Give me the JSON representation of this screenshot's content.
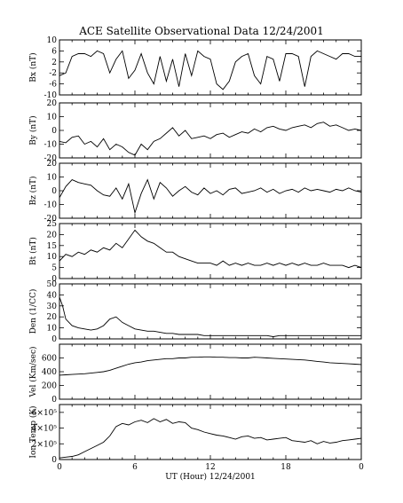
{
  "chart_data": {
    "title": "ACE Satellite Observational Data   12/24/2001",
    "type": "line",
    "x_axis": {
      "label": "UT (Hour)  12/24/2001",
      "range_hours": [
        0,
        24
      ],
      "ticks": [
        {
          "hour": 0,
          "label": "0"
        },
        {
          "hour": 6,
          "label": "6"
        },
        {
          "hour": 12,
          "label": "12"
        },
        {
          "hour": 18,
          "label": "18"
        },
        {
          "hour": 24,
          "label": "0"
        }
      ]
    },
    "panels": [
      {
        "ylabel": "Bx (nT)",
        "ylim": [
          -10,
          10
        ],
        "ticks": [
          "-10",
          "-6",
          "-2",
          "2",
          "6",
          "10"
        ],
        "tick_values": [
          -10,
          -6,
          -2,
          2,
          6,
          10
        ],
        "color": "#000000",
        "x": [
          0,
          0.5,
          1,
          1.5,
          2,
          2.5,
          3,
          3.5,
          4,
          4.5,
          5,
          5.5,
          6,
          6.5,
          7,
          7.5,
          8,
          8.5,
          9,
          9.5,
          10,
          10.5,
          11,
          11.5,
          12,
          12.5,
          13,
          13.5,
          14,
          14.5,
          15,
          15.5,
          16,
          16.5,
          17,
          17.5,
          18,
          18.5,
          19,
          19.5,
          20,
          20.5,
          21,
          21.5,
          22,
          22.5,
          23,
          23.5,
          24
        ],
        "values": [
          -3,
          -2,
          4,
          5,
          5,
          4,
          6,
          5,
          -2,
          3,
          6,
          -4,
          -1,
          5,
          -2,
          -6,
          4,
          -5,
          3,
          -7,
          5,
          -3,
          6,
          4,
          3,
          -6,
          -8,
          -5,
          2,
          4,
          5,
          -3,
          -6,
          4,
          3,
          -5,
          5,
          5,
          4,
          -7,
          4,
          6,
          5,
          4,
          3,
          5,
          5,
          4,
          4
        ]
      },
      {
        "ylabel": "By (nT)",
        "ylim": [
          -20,
          20
        ],
        "ticks": [
          "-20",
          "-10",
          "0",
          "10",
          "20"
        ],
        "tick_values": [
          -20,
          -10,
          0,
          10,
          20
        ],
        "color": "#000000",
        "x": [
          0,
          0.5,
          1,
          1.5,
          2,
          2.5,
          3,
          3.5,
          4,
          4.5,
          5,
          5.5,
          6,
          6.5,
          7,
          7.5,
          8,
          8.5,
          9,
          9.5,
          10,
          10.5,
          11,
          11.5,
          12,
          12.5,
          13,
          13.5,
          14,
          14.5,
          15,
          15.5,
          16,
          16.5,
          17,
          17.5,
          18,
          18.5,
          19,
          19.5,
          20,
          20.5,
          21,
          21.5,
          22,
          22.5,
          23,
          23.5,
          24
        ],
        "values": [
          -8,
          -9,
          -5,
          -4,
          -10,
          -8,
          -12,
          -6,
          -14,
          -10,
          -12,
          -16,
          -18,
          -10,
          -14,
          -8,
          -6,
          -2,
          2,
          -4,
          0,
          -6,
          -5,
          -4,
          -6,
          -3,
          -2,
          -5,
          -3,
          -1,
          -2,
          1,
          -1,
          2,
          3,
          1,
          0,
          2,
          3,
          4,
          2,
          5,
          6,
          3,
          4,
          2,
          0,
          1,
          0
        ]
      },
      {
        "ylabel": "Bz (nT)",
        "ylim": [
          -20,
          20
        ],
        "ticks": [
          "-20",
          "-10",
          "0",
          "10",
          "20"
        ],
        "tick_values": [
          -20,
          -10,
          0,
          10,
          20
        ],
        "color": "#000000",
        "x": [
          0,
          0.5,
          1,
          1.5,
          2,
          2.5,
          3,
          3.5,
          4,
          4.5,
          5,
          5.5,
          6,
          6.5,
          7,
          7.5,
          8,
          8.5,
          9,
          9.5,
          10,
          10.5,
          11,
          11.5,
          12,
          12.5,
          13,
          13.5,
          14,
          14.5,
          15,
          15.5,
          16,
          16.5,
          17,
          17.5,
          18,
          18.5,
          19,
          19.5,
          20,
          20.5,
          21,
          21.5,
          22,
          22.5,
          23,
          23.5,
          24
        ],
        "values": [
          -5,
          3,
          8,
          6,
          5,
          4,
          0,
          -3,
          -4,
          2,
          -6,
          5,
          -16,
          -2,
          8,
          -6,
          6,
          2,
          -4,
          0,
          3,
          -1,
          -3,
          2,
          -2,
          0,
          -3,
          1,
          2,
          -2,
          -1,
          0,
          2,
          -1,
          1,
          -2,
          0,
          1,
          -1,
          2,
          0,
          1,
          0,
          -1,
          1,
          0,
          2,
          0,
          -1
        ]
      },
      {
        "ylabel": "Bt (nT)",
        "ylim": [
          0,
          25
        ],
        "ticks": [
          "0",
          "5",
          "10",
          "15",
          "20",
          "25"
        ],
        "tick_values": [
          0,
          5,
          10,
          15,
          20,
          25
        ],
        "color": "#000000",
        "x": [
          0,
          0.5,
          1,
          1.5,
          2,
          2.5,
          3,
          3.5,
          4,
          4.5,
          5,
          5.5,
          6,
          6.5,
          7,
          7.5,
          8,
          8.5,
          9,
          9.5,
          10,
          10.5,
          11,
          11.5,
          12,
          12.5,
          13,
          13.5,
          14,
          14.5,
          15,
          15.5,
          16,
          16.5,
          17,
          17.5,
          18,
          18.5,
          19,
          19.5,
          20,
          20.5,
          21,
          21.5,
          22,
          22.5,
          23,
          23.5,
          24
        ],
        "values": [
          8,
          11,
          10,
          12,
          11,
          13,
          12,
          14,
          13,
          16,
          14,
          18,
          22,
          19,
          17,
          16,
          14,
          12,
          12,
          10,
          9,
          8,
          7,
          7,
          7,
          6,
          8,
          6,
          7,
          6,
          7,
          6,
          6,
          7,
          6,
          7,
          6,
          7,
          6,
          7,
          6,
          6,
          7,
          6,
          6,
          6,
          5,
          6,
          5
        ]
      },
      {
        "ylabel": "Den (1/CC)",
        "ylim": [
          0,
          50
        ],
        "ticks": [
          "0",
          "10",
          "20",
          "30",
          "40",
          "50"
        ],
        "tick_values": [
          0,
          10,
          20,
          30,
          40,
          50
        ],
        "color": "#000000",
        "x": [
          0,
          0.25,
          0.5,
          1,
          1.5,
          2,
          2.5,
          3,
          3.5,
          4,
          4.5,
          5,
          5.5,
          6,
          6.5,
          7,
          7.5,
          8,
          8.5,
          9,
          9.5,
          10,
          10.5,
          11,
          11.5,
          12,
          12.5,
          13,
          13.5,
          14,
          14.5,
          15,
          15.5,
          16,
          16.5,
          17,
          17.5,
          18,
          18.5,
          19,
          19.5,
          20,
          20.5,
          21,
          21.5,
          22,
          22.5,
          23,
          23.5,
          24
        ],
        "values": [
          38,
          30,
          18,
          12,
          10,
          9,
          8,
          9,
          12,
          18,
          20,
          15,
          12,
          9,
          8,
          7,
          7,
          6,
          5,
          5,
          4,
          4,
          4,
          4,
          3,
          3,
          3,
          3,
          3,
          3,
          3,
          3,
          3,
          3,
          3,
          2,
          3,
          3,
          3,
          3,
          3,
          3,
          3,
          3,
          3,
          3,
          3,
          3,
          3,
          3
        ]
      },
      {
        "ylabel": "Vel (Km/sec)",
        "ylim": [
          0,
          800
        ],
        "ticks": [
          "0",
          "200",
          "400",
          "600"
        ],
        "tick_values": [
          0,
          200,
          400,
          600
        ],
        "color": "#000000",
        "x": [
          0,
          0.5,
          1,
          1.5,
          2,
          2.5,
          3,
          3.5,
          4,
          4.5,
          5,
          5.5,
          6,
          6.5,
          7,
          7.5,
          8,
          8.5,
          9,
          9.5,
          10,
          10.5,
          11,
          11.5,
          12,
          12.5,
          13,
          13.5,
          14,
          14.5,
          15,
          15.5,
          16,
          16.5,
          17,
          17.5,
          18,
          18.5,
          19,
          19.5,
          20,
          20.5,
          21,
          21.5,
          22,
          22.5,
          23,
          23.5,
          24
        ],
        "values": [
          350,
          355,
          360,
          365,
          370,
          380,
          390,
          400,
          420,
          450,
          480,
          510,
          530,
          540,
          560,
          570,
          580,
          590,
          590,
          600,
          600,
          610,
          610,
          615,
          615,
          610,
          610,
          605,
          605,
          600,
          600,
          610,
          605,
          600,
          595,
          590,
          585,
          580,
          575,
          570,
          560,
          550,
          540,
          530,
          525,
          520,
          515,
          510,
          505
        ]
      },
      {
        "ylabel": "Ion Temp (K)",
        "ylim": [
          0,
          700000
        ],
        "ticks": [
          "0",
          "2×10⁵",
          "4×10⁵",
          "6×10⁵"
        ],
        "tick_values": [
          0,
          200000,
          400000,
          600000
        ],
        "color": "#000000",
        "x": [
          0,
          0.5,
          1,
          1.5,
          2,
          2.5,
          3,
          3.5,
          4,
          4.5,
          5,
          5.5,
          6,
          6.5,
          7,
          7.5,
          8,
          8.5,
          9,
          9.5,
          10,
          10.5,
          11,
          11.5,
          12,
          12.5,
          13,
          13.5,
          14,
          14.5,
          15,
          15.5,
          16,
          16.5,
          17,
          17.5,
          18,
          18.5,
          19,
          19.5,
          20,
          20.5,
          21,
          21.5,
          22,
          22.5,
          23,
          23.5,
          24
        ],
        "values": [
          20000,
          30000,
          40000,
          60000,
          100000,
          140000,
          180000,
          220000,
          300000,
          420000,
          460000,
          440000,
          480000,
          500000,
          470000,
          520000,
          480000,
          510000,
          460000,
          480000,
          470000,
          400000,
          380000,
          350000,
          330000,
          310000,
          300000,
          280000,
          260000,
          290000,
          300000,
          270000,
          280000,
          250000,
          260000,
          270000,
          280000,
          240000,
          230000,
          220000,
          240000,
          200000,
          230000,
          210000,
          220000,
          240000,
          250000,
          260000,
          270000
        ]
      }
    ]
  }
}
